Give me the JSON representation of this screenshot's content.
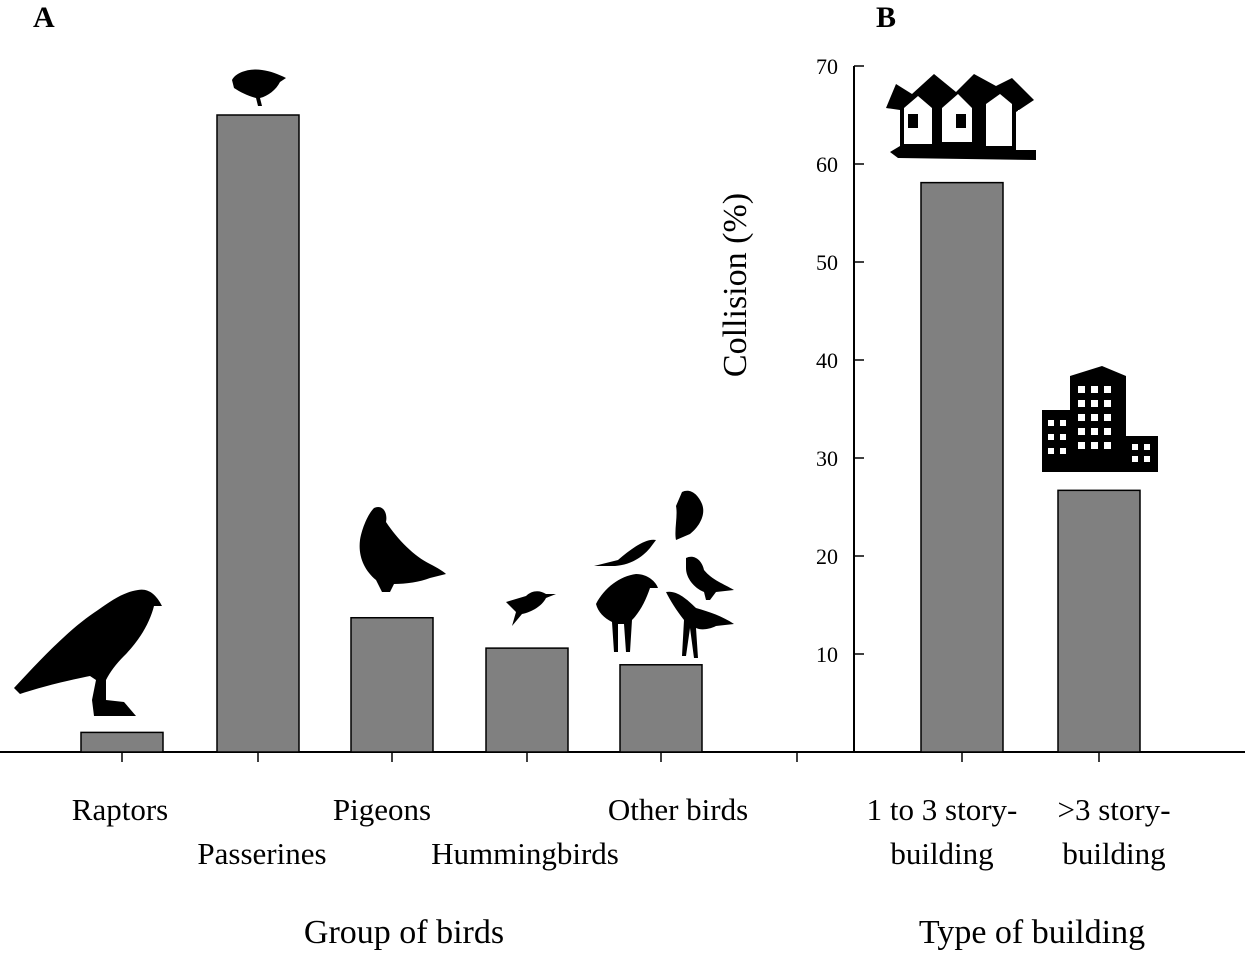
{
  "chart_data": [
    {
      "panel": "A",
      "type": "bar",
      "categories": [
        "Raptors",
        "Passerines",
        "Pigeons",
        "Hummingbirds",
        "Other birds"
      ],
      "values": [
        2,
        65,
        13.7,
        10.6,
        8.9
      ],
      "xlabel": "Group of birds",
      "ylabel": "Collision (%)",
      "ylim": [
        0,
        70
      ],
      "bar_color": "#808080",
      "icons": [
        "raptor-silhouette-icon",
        "passerine-silhouette-icon",
        "pigeon-silhouette-icon",
        "hummingbird-silhouette-icon",
        "other-birds-silhouettes-icon"
      ]
    },
    {
      "panel": "B",
      "type": "bar",
      "categories": [
        "1 to 3 story-building",
        ">3 story-building"
      ],
      "category_lines": [
        [
          "1 to 3 story-",
          "building"
        ],
        [
          ">3 story-",
          "building"
        ]
      ],
      "values": [
        58.1,
        26.7
      ],
      "xlabel": "Type of building",
      "ylabel": "Collision (%)",
      "ylim": [
        0,
        70
      ],
      "yticks": [
        10,
        20,
        30,
        40,
        50,
        60,
        70
      ],
      "bar_color": "#808080",
      "icons": [
        "house-icon",
        "apartment-building-icon"
      ]
    }
  ]
}
